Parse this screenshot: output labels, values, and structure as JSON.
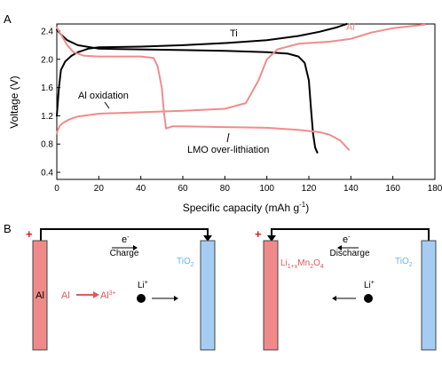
{
  "panel_labels": {
    "a": "A",
    "b": "B"
  },
  "chart_data": {
    "type": "line",
    "title": "",
    "xlabel_main": "Specific capacity (mAh g",
    "xlabel_sup": "-1",
    "xlabel_end": ")",
    "ylabel": "Voltage (V)",
    "xlim": [
      0,
      180
    ],
    "ylim": [
      0.3,
      2.5
    ],
    "xticks": [
      0,
      20,
      40,
      60,
      80,
      100,
      120,
      140,
      160,
      180
    ],
    "yticks": [
      0.4,
      0.8,
      1.2,
      1.6,
      2.0,
      2.4
    ],
    "grid": false,
    "series": [
      {
        "name": "Ti",
        "color": "#000000",
        "segments": [
          [
            [
              0,
              1.2
            ],
            [
              1,
              1.6
            ],
            [
              2,
              1.85
            ],
            [
              4,
              1.97
            ],
            [
              7,
              2.05
            ],
            [
              10,
              2.1
            ],
            [
              15,
              2.15
            ],
            [
              20,
              2.17
            ],
            [
              40,
              2.18
            ],
            [
              60,
              2.2
            ],
            [
              80,
              2.23
            ],
            [
              100,
              2.27
            ],
            [
              115,
              2.33
            ],
            [
              125,
              2.39
            ],
            [
              133,
              2.45
            ],
            [
              138,
              2.5
            ]
          ],
          [
            [
              0,
              2.42
            ],
            [
              2,
              2.35
            ],
            [
              5,
              2.27
            ],
            [
              10,
              2.2
            ],
            [
              20,
              2.15
            ],
            [
              40,
              2.14
            ],
            [
              60,
              2.13
            ],
            [
              80,
              2.12
            ],
            [
              100,
              2.1
            ],
            [
              110,
              2.08
            ],
            [
              115,
              2.04
            ],
            [
              118,
              1.95
            ],
            [
              120,
              1.7
            ],
            [
              121,
              1.3
            ],
            [
              122,
              0.95
            ],
            [
              123,
              0.75
            ],
            [
              124,
              0.68
            ]
          ]
        ]
      },
      {
        "name": "Al",
        "color": "#f08c8c",
        "segments": [
          [
            [
              0,
              0.95
            ],
            [
              0.5,
              1.0
            ],
            [
              1.5,
              1.06
            ],
            [
              3,
              1.1
            ],
            [
              6,
              1.15
            ],
            [
              10,
              1.19
            ],
            [
              20,
              1.23
            ],
            [
              40,
              1.25
            ],
            [
              60,
              1.27
            ],
            [
              80,
              1.3
            ],
            [
              90,
              1.38
            ],
            [
              96,
              1.7
            ],
            [
              100,
              2.0
            ],
            [
              105,
              2.14
            ],
            [
              115,
              2.22
            ],
            [
              130,
              2.25
            ],
            [
              140,
              2.29
            ],
            [
              150,
              2.38
            ],
            [
              160,
              2.44
            ],
            [
              175,
              2.49
            ]
          ],
          [
            [
              0,
              2.45
            ],
            [
              2,
              2.35
            ],
            [
              5,
              2.2
            ],
            [
              8,
              2.1
            ],
            [
              13,
              2.05
            ],
            [
              20,
              2.04
            ],
            [
              30,
              2.04
            ],
            [
              40,
              2.04
            ],
            [
              46,
              2.02
            ],
            [
              48,
              1.9
            ],
            [
              50,
              1.6
            ],
            [
              51,
              1.25
            ],
            [
              52,
              1.02
            ],
            [
              55,
              1.05
            ],
            [
              60,
              1.05
            ],
            [
              80,
              1.04
            ],
            [
              100,
              1.03
            ],
            [
              115,
              1.0
            ],
            [
              125,
              0.97
            ],
            [
              130,
              0.93
            ],
            [
              135,
              0.85
            ],
            [
              139,
              0.72
            ]
          ]
        ]
      }
    ],
    "annotations": {
      "ti": "Ti",
      "al": "Al",
      "al_oxidation": "Al oxidation",
      "lmo": "LMO over-lithiation"
    }
  },
  "schematic": {
    "charge": {
      "electron": "e",
      "electron_sup": "-",
      "label": "Charge",
      "plus": "+",
      "left_electrode": "Al",
      "right_electrode": "TiO",
      "right_sub": "2",
      "reaction_left": "Al",
      "reaction_right": "Al",
      "reaction_sup": "3+",
      "ion": "Li",
      "ion_sup": "+"
    },
    "discharge": {
      "electron": "e",
      "electron_sup": "-",
      "label": "Discharge",
      "plus": "+",
      "left_1": "Li",
      "left_sub1": "1+x",
      "left_2": "Mn",
      "left_sub2": "2",
      "left_3": "O",
      "left_sub3": "4",
      "right_electrode": "TiO",
      "right_sub": "2",
      "ion": "Li",
      "ion_sup": "+"
    },
    "colors": {
      "red_electrode": "#f08a8a",
      "blue_electrode": "#a5cdf3",
      "red_text": "#e05a5a",
      "blue_text": "#6fb2ea",
      "plus": "#d62020"
    }
  }
}
